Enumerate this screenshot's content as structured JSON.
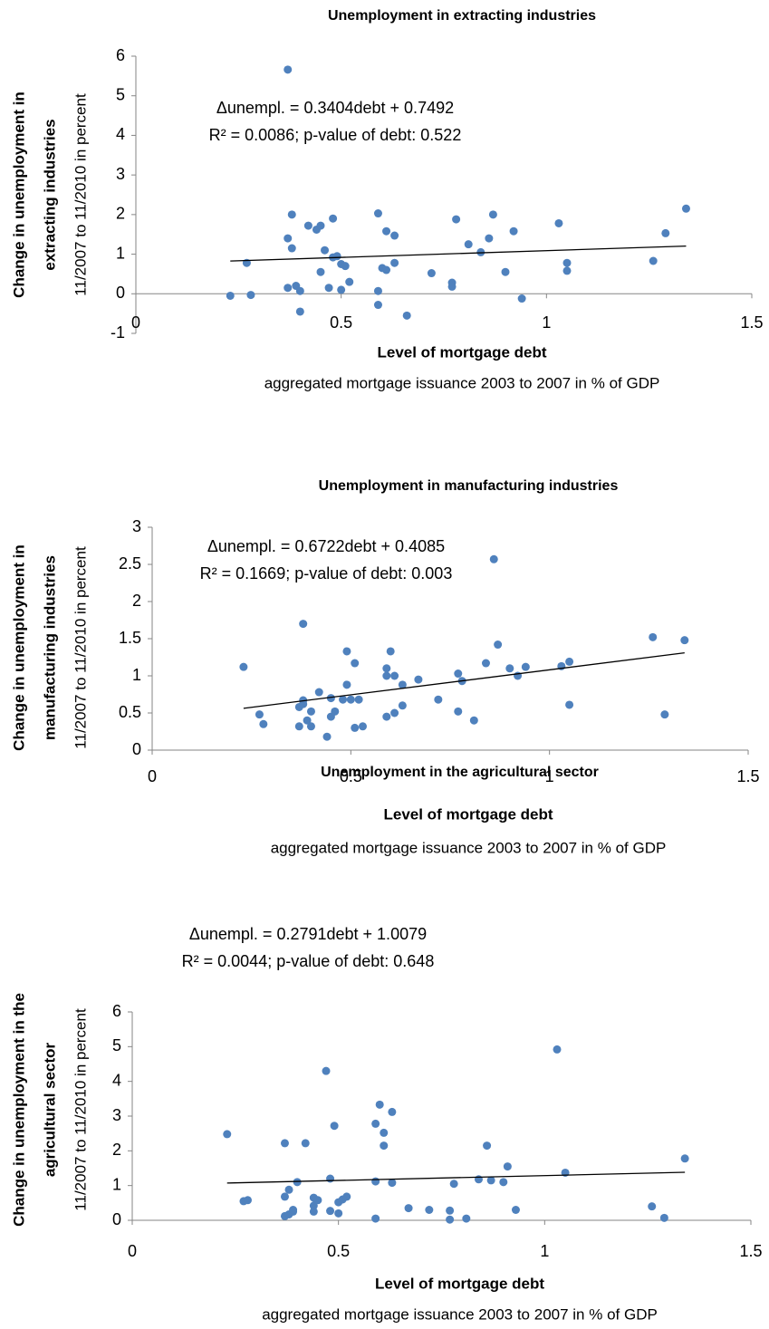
{
  "chart_data": [
    {
      "type": "scatter",
      "title": "Unemployment in extracting industries",
      "y_label": [
        "Change in unemployment in",
        "extracting industries"
      ],
      "y_sublabel": "11/2007 to 11/2010 in percent",
      "x_label": "Level of mortgage debt",
      "x_sublabel": "aggregated mortgage issuance 2003 to 2007 in % of GDP",
      "annotation": [
        "Δunempl. = 0.3404debt + 0.7492",
        "R² = 0.0086; p-value of debt: 0.522"
      ],
      "color": "#4f81bd",
      "x": [
        0.23,
        0.27,
        0.28,
        0.37,
        0.37,
        0.38,
        0.38,
        0.37,
        0.39,
        0.4,
        0.4,
        0.42,
        0.44,
        0.45,
        0.45,
        0.46,
        0.47,
        0.48,
        0.48,
        0.49,
        0.5,
        0.5,
        0.51,
        0.52,
        0.59,
        0.59,
        0.59,
        0.6,
        0.61,
        0.61,
        0.63,
        0.63,
        0.66,
        0.72,
        0.77,
        0.77,
        0.78,
        0.81,
        0.84,
        0.86,
        0.87,
        0.9,
        0.92,
        0.94,
        1.03,
        1.05,
        1.05,
        1.26,
        1.29,
        1.34
      ],
      "values": [
        -0.05,
        0.78,
        -0.03,
        5.66,
        1.4,
        2.0,
        1.15,
        0.15,
        0.2,
        0.07,
        -0.45,
        1.72,
        1.62,
        1.72,
        0.55,
        1.1,
        0.15,
        1.9,
        0.92,
        0.95,
        0.75,
        0.1,
        0.7,
        0.3,
        2.03,
        0.07,
        -0.28,
        0.65,
        0.6,
        1.58,
        1.47,
        0.78,
        -0.55,
        0.52,
        0.28,
        0.18,
        1.88,
        1.25,
        1.05,
        1.4,
        2.0,
        0.55,
        1.58,
        -0.12,
        1.78,
        0.78,
        0.58,
        0.83,
        1.53,
        2.15
      ],
      "trendline": {
        "x": [
          0.23,
          1.34
        ],
        "values": [
          0.827,
          1.205
        ],
        "color": "#000000"
      },
      "xlim": [
        0,
        1.5
      ],
      "xticks": [
        0,
        0.5,
        1,
        1.5
      ],
      "ylim": [
        -1,
        6
      ],
      "yticks": [
        -1,
        0,
        1,
        2,
        3,
        4,
        5,
        6
      ]
    },
    {
      "type": "scatter",
      "title": "Unemployment in manufacturing industries",
      "y_label": [
        "Change in unemployment in",
        "manufacturing industries"
      ],
      "y_sublabel": "11/2007 to 11/2010 in percent",
      "x_label": "Level of mortgage debt",
      "x_sublabel": "aggregated mortgage issuance 2003 to 2007 in % of GDP",
      "annotation": [
        "Δunempl. = 0.6722debt + 0.4085",
        "R² = 0.1669; p-value of debt: 0.003"
      ],
      "color": "#4f81bd",
      "x": [
        0.23,
        0.27,
        0.28,
        0.37,
        0.37,
        0.38,
        0.38,
        0.38,
        0.39,
        0.4,
        0.4,
        0.42,
        0.44,
        0.45,
        0.45,
        0.46,
        0.48,
        0.49,
        0.49,
        0.5,
        0.51,
        0.51,
        0.52,
        0.53,
        0.59,
        0.59,
        0.59,
        0.6,
        0.61,
        0.61,
        0.63,
        0.63,
        0.67,
        0.72,
        0.77,
        0.77,
        0.78,
        0.81,
        0.84,
        0.86,
        0.87,
        0.9,
        0.92,
        0.94,
        1.03,
        1.05,
        1.05,
        1.26,
        1.29,
        1.34
      ],
      "values": [
        1.12,
        0.48,
        0.35,
        0.32,
        0.58,
        0.62,
        0.67,
        1.7,
        0.4,
        0.52,
        0.32,
        0.78,
        0.18,
        0.7,
        0.45,
        0.52,
        0.68,
        0.88,
        1.33,
        0.68,
        0.3,
        1.17,
        0.68,
        0.32,
        0.45,
        1.0,
        1.1,
        1.33,
        1.0,
        0.5,
        0.6,
        0.88,
        0.95,
        0.68,
        1.03,
        0.52,
        0.93,
        0.4,
        1.17,
        2.57,
        1.42,
        1.1,
        1.0,
        1.12,
        1.13,
        1.19,
        0.61,
        1.52,
        0.48,
        1.48
      ],
      "trendline": {
        "x": [
          0.23,
          1.34
        ],
        "values": [
          0.563,
          1.309
        ],
        "color": "#000000"
      },
      "xlim": [
        0,
        1.5
      ],
      "xticks": [
        0,
        0.5,
        1,
        1.5
      ],
      "ylim": [
        0,
        3
      ],
      "yticks": [
        0,
        0.5,
        1,
        1.5,
        2,
        2.5,
        3
      ]
    },
    {
      "type": "scatter",
      "title": "Unemployment in the agricultural sector",
      "y_label": [
        "Change in unemployment in the",
        "agricultural sector"
      ],
      "y_sublabel": "11/2007 to 11/2010 in percent",
      "x_label": "Level of mortgage debt",
      "x_sublabel": "aggregated mortgage issuance 2003 to 2007 in % of GDP",
      "annotation": [
        "Δunempl. = 0.2791debt + 1.0079",
        "R² = 0.0044; p-value of debt: 0.648"
      ],
      "color": "#4f81bd",
      "x": [
        0.23,
        0.27,
        0.28,
        0.37,
        0.37,
        0.37,
        0.38,
        0.38,
        0.39,
        0.39,
        0.4,
        0.42,
        0.44,
        0.44,
        0.44,
        0.45,
        0.47,
        0.48,
        0.48,
        0.49,
        0.5,
        0.5,
        0.51,
        0.52,
        0.59,
        0.59,
        0.59,
        0.6,
        0.61,
        0.61,
        0.63,
        0.63,
        0.67,
        0.72,
        0.77,
        0.77,
        0.78,
        0.81,
        0.84,
        0.86,
        0.87,
        0.9,
        0.91,
        0.93,
        1.03,
        1.05,
        1.26,
        1.29,
        1.34
      ],
      "values": [
        2.48,
        0.55,
        0.58,
        2.22,
        0.68,
        0.12,
        0.88,
        0.17,
        0.25,
        0.3,
        1.1,
        2.22,
        0.65,
        0.25,
        0.42,
        0.58,
        4.3,
        1.2,
        0.27,
        2.72,
        0.52,
        0.2,
        0.6,
        0.68,
        2.78,
        1.12,
        0.05,
        3.33,
        2.52,
        2.15,
        3.12,
        1.08,
        0.35,
        0.3,
        0.28,
        0.02,
        1.05,
        0.05,
        1.18,
        2.15,
        1.15,
        1.1,
        1.55,
        0.3,
        4.92,
        1.37,
        0.4,
        0.07,
        1.78
      ],
      "trendline": {
        "x": [
          0.23,
          1.34
        ],
        "values": [
          1.072,
          1.382
        ],
        "color": "#000000"
      },
      "xlim": [
        0,
        1.5
      ],
      "xticks": [
        0,
        0.5,
        1,
        1.5
      ],
      "ylim": [
        0,
        6
      ],
      "yticks": [
        0,
        1,
        2,
        3,
        4,
        5,
        6
      ]
    }
  ]
}
